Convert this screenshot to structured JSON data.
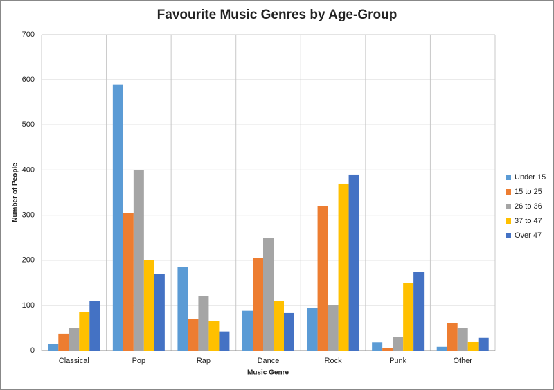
{
  "chart_data": {
    "type": "bar",
    "title": "Favourite Music Genres by Age-Group",
    "x_label": "Music Genre",
    "y_label": "Number of People",
    "categories": [
      "Classical",
      "Pop",
      "Rap",
      "Dance",
      "Rock",
      "Punk",
      "Other"
    ],
    "series": [
      {
        "name": "Under 15",
        "color": "#5b9bd5",
        "values": [
          15,
          590,
          185,
          88,
          95,
          18,
          8
        ]
      },
      {
        "name": "15 to 25",
        "color": "#ed7d31",
        "values": [
          37,
          305,
          70,
          205,
          320,
          5,
          60
        ]
      },
      {
        "name": "26 to 36",
        "color": "#a5a5a5",
        "values": [
          50,
          400,
          120,
          250,
          100,
          30,
          50
        ]
      },
      {
        "name": "37 to 47",
        "color": "#ffc000",
        "values": [
          85,
          200,
          65,
          110,
          370,
          150,
          20
        ]
      },
      {
        "name": "Over 47",
        "color": "#4472c4",
        "values": [
          110,
          170,
          42,
          83,
          390,
          175,
          28
        ]
      }
    ],
    "ylim": [
      0,
      700
    ],
    "yticks": [
      0,
      100,
      200,
      300,
      400,
      500,
      600,
      700
    ],
    "grid": true,
    "legend": "right"
  }
}
